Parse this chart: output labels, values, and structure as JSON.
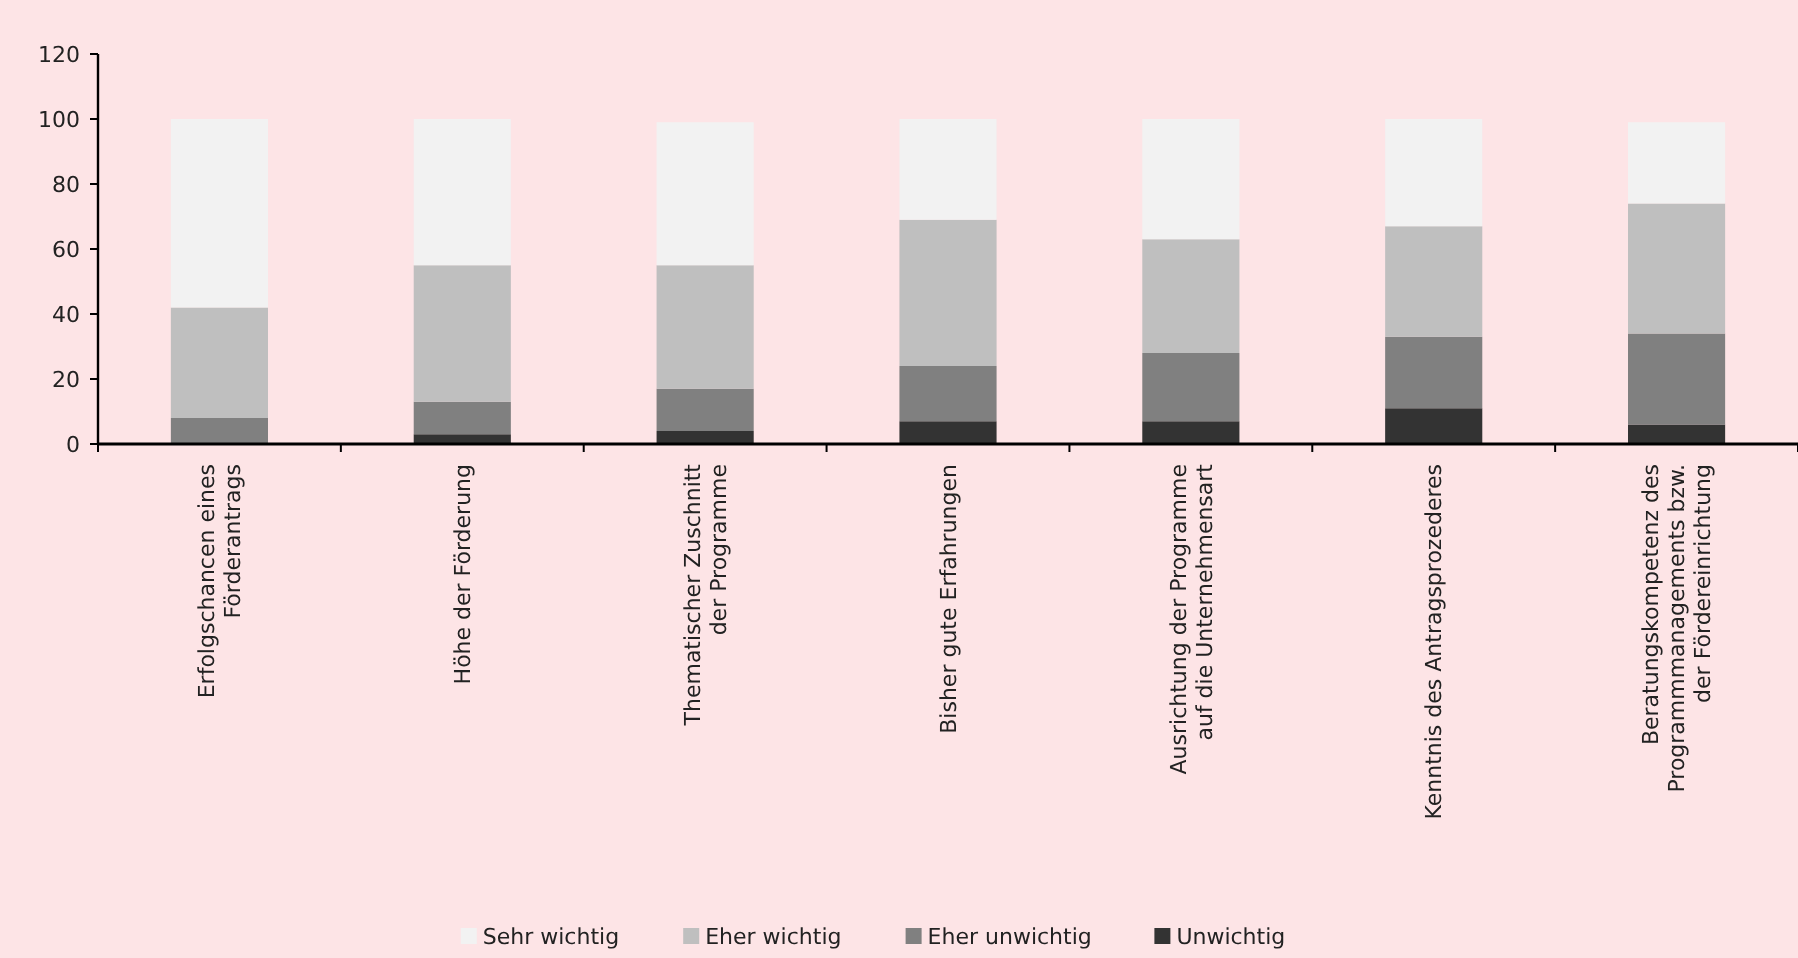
{
  "chart_data": {
    "type": "bar",
    "stacked": true,
    "categories": [
      "Erfolgschancen eines\nFörderantrags",
      "Höhe der Förderung",
      "Thematischer Zuschnitt\nder Programme",
      "Bisher gute Erfahrungen",
      "Ausrichtung der Programme\nauf die Unternehmensart",
      "Kenntnis des Antragsprozederes",
      "Beratungskompetenz des\nProgrammmanagements bzw.\nder Fördereinrichtung"
    ],
    "series": [
      {
        "name": "Unwichtig",
        "color": "#333333",
        "values": [
          0,
          3,
          4,
          7,
          7,
          11,
          6
        ]
      },
      {
        "name": "Eher unwichtig",
        "color": "#808080",
        "values": [
          8,
          10,
          13,
          17,
          21,
          22,
          28
        ]
      },
      {
        "name": "Eher wichtig",
        "color": "#bfbfbf",
        "values": [
          34,
          42,
          38,
          45,
          35,
          34,
          40
        ]
      },
      {
        "name": "Sehr wichtig",
        "color": "#f2f2f2",
        "values": [
          58,
          45,
          44,
          31,
          37,
          33,
          25
        ]
      }
    ],
    "ylim": [
      0,
      120
    ],
    "yticks": [
      0,
      20,
      40,
      60,
      80,
      100,
      120
    ],
    "grid": false,
    "legend": "bottom"
  }
}
